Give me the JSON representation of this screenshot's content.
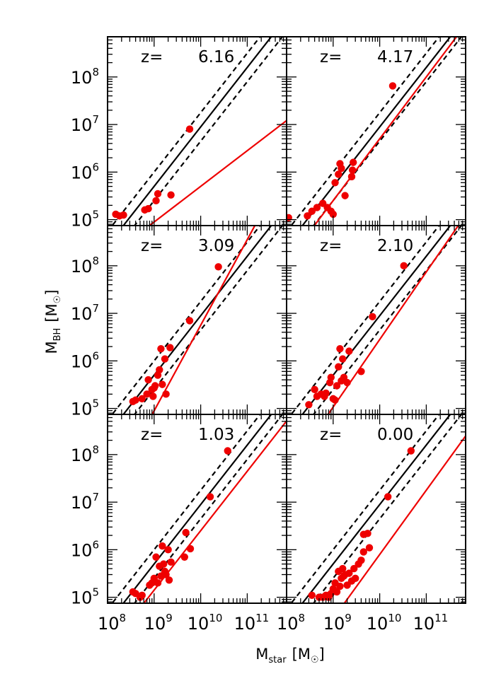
{
  "colors": {
    "data": "#ee0000",
    "reference": "#000000"
  },
  "chart_data": {
    "type": "scatter",
    "xlabel": {
      "main": "M",
      "sub": "star",
      "unit": "[M",
      "unit_close": "]"
    },
    "ylabel": {
      "main": "M",
      "sub": "BH",
      "unit": "[M",
      "unit_close": "]"
    },
    "xscale": "log",
    "yscale": "log",
    "xlim": [
      100000000,
      700000000000
    ],
    "ylim": [
      75000,
      700000000
    ],
    "xticks": [
      {
        "value": 100000000,
        "base": "10",
        "exp": "8"
      },
      {
        "value": 1000000000,
        "base": "10",
        "exp": "9"
      },
      {
        "value": 10000000000,
        "base": "10",
        "exp": "10"
      },
      {
        "value": 100000000000,
        "base": "10",
        "exp": "11"
      }
    ],
    "yticks": [
      {
        "value": 100000,
        "base": "10",
        "exp": "5"
      },
      {
        "value": 1000000,
        "base": "10",
        "exp": "6"
      },
      {
        "value": 10000000,
        "base": "10",
        "exp": "7"
      },
      {
        "value": 100000000,
        "base": "10",
        "exp": "8"
      }
    ],
    "reference_relation": {
      "central": {
        "logA": -5.55,
        "slope": 1.25
      },
      "scatter_dex": 0.3
    },
    "panels": [
      {
        "label": "z=",
        "z": "6.16",
        "fit": {
          "logA": -1.8,
          "slope": 0.75
        },
        "points": [
          [
            150000000.0,
            130000.0
          ],
          [
            180000000.0,
            120000.0
          ],
          [
            220000000.0,
            125000.0
          ],
          [
            630000000.0,
            160000.0
          ],
          [
            750000000.0,
            170000.0
          ],
          [
            1100000000.0,
            250000.0
          ],
          [
            1200000000.0,
            350000.0
          ],
          [
            2300000000.0,
            330000.0
          ],
          [
            5800000000.0,
            8000000.0
          ]
        ]
      },
      {
        "label": "z=",
        "z": "4.17",
        "fit": {
          "logA": -6.3,
          "slope": 1.3
        },
        "points": [
          [
            110000000.0,
            110000.0
          ],
          [
            280000000.0,
            120000.0
          ],
          [
            350000000.0,
            150000.0
          ],
          [
            450000000.0,
            180000.0
          ],
          [
            600000000.0,
            220000.0
          ],
          [
            750000000.0,
            180000.0
          ],
          [
            900000000.0,
            150000.0
          ],
          [
            1000000000.0,
            130000.0
          ],
          [
            1100000000.0,
            600000.0
          ],
          [
            1300000000.0,
            900000.0
          ],
          [
            1400000000.0,
            1500000.0
          ],
          [
            1500000000.0,
            1200000.0
          ],
          [
            1800000000.0,
            320000.0
          ],
          [
            2500000000.0,
            800000.0
          ],
          [
            2600000000.0,
            1100000.0
          ],
          [
            2700000000.0,
            1600000.0
          ],
          [
            19000000000.0,
            65000000.0
          ]
        ]
      },
      {
        "label": "z=",
        "z": "3.09",
        "fit": {
          "logA": -11.25,
          "slope": 1.8
        },
        "points": [
          [
            350000000.0,
            140000.0
          ],
          [
            400000000.0,
            150000.0
          ],
          [
            550000000.0,
            160000.0
          ],
          [
            700000000.0,
            200000.0
          ],
          [
            750000000.0,
            400000.0
          ],
          [
            900000000.0,
            250000.0
          ],
          [
            950000000.0,
            180000.0
          ],
          [
            1000000000.0,
            270000.0
          ],
          [
            1050000000.0,
            300000.0
          ],
          [
            1200000000.0,
            500000.0
          ],
          [
            1300000000.0,
            650000.0
          ],
          [
            1400000000.0,
            1800000.0
          ],
          [
            1500000000.0,
            320000.0
          ],
          [
            1700000000.0,
            1100000.0
          ],
          [
            1800000000.0,
            200000.0
          ],
          [
            2200000000.0,
            1900000.0
          ],
          [
            5800000000.0,
            7000000.0
          ],
          [
            24000000000.0,
            95000000.0
          ]
        ]
      },
      {
        "label": "z=",
        "z": "2.10",
        "fit": {
          "logA": -7.75,
          "slope": 1.42
        },
        "points": [
          [
            300000000.0,
            120000.0
          ],
          [
            400000000.0,
            250000.0
          ],
          [
            450000000.0,
            180000.0
          ],
          [
            550000000.0,
            200000.0
          ],
          [
            650000000.0,
            180000.0
          ],
          [
            700000000.0,
            210000.0
          ],
          [
            850000000.0,
            350000.0
          ],
          [
            900000000.0,
            450000.0
          ],
          [
            1000000000.0,
            160000.0
          ],
          [
            1100000000.0,
            150000.0
          ],
          [
            1200000000.0,
            300000.0
          ],
          [
            1300000000.0,
            750000.0
          ],
          [
            1400000000.0,
            1800000.0
          ],
          [
            1500000000.0,
            380000.0
          ],
          [
            1600000000.0,
            1100000.0
          ],
          [
            1700000000.0,
            450000.0
          ],
          [
            2000000000.0,
            350000.0
          ],
          [
            2200000000.0,
            1600000.0
          ],
          [
            4000000000.0,
            600000.0
          ],
          [
            7000000000.0,
            8500000.0
          ],
          [
            33000000000.0,
            100000000.0
          ]
        ]
      },
      {
        "label": "z=",
        "z": "1.03",
        "fit": {
          "logA": -6.1,
          "slope": 1.25
        },
        "points": [
          [
            350000000.0,
            130000.0
          ],
          [
            400000000.0,
            120000.0
          ],
          [
            500000000.0,
            100000.0
          ],
          [
            550000000.0,
            110000.0
          ],
          [
            800000000.0,
            180000.0
          ],
          [
            900000000.0,
            200000.0
          ],
          [
            1000000000.0,
            250000.0
          ],
          [
            1100000000.0,
            700000.0
          ],
          [
            1200000000.0,
            200000.0
          ],
          [
            1300000000.0,
            450000.0
          ],
          [
            1400000000.0,
            280000.0
          ],
          [
            1500000000.0,
            1200000.0
          ],
          [
            1600000000.0,
            500000.0
          ],
          [
            1700000000.0,
            350000.0
          ],
          [
            1800000000.0,
            300000.0
          ],
          [
            2000000000.0,
            1000000.0
          ],
          [
            2100000000.0,
            230000.0
          ],
          [
            2300000000.0,
            550000.0
          ],
          [
            4500000000.0,
            700000.0
          ],
          [
            4800000000.0,
            2300000.0
          ],
          [
            6000000000.0,
            1050000.0
          ],
          [
            16000000000.0,
            13000000.0
          ],
          [
            38000000000.0,
            120000000.0
          ]
        ]
      },
      {
        "label": "z=",
        "z": "0.00",
        "fit": {
          "logA": -7.6,
          "slope": 1.35
        },
        "points": [
          [
            350000000.0,
            110000.0
          ],
          [
            500000000.0,
            100000.0
          ],
          [
            600000000.0,
            100000.0
          ],
          [
            700000000.0,
            110000.0
          ],
          [
            800000000.0,
            100000.0
          ],
          [
            900000000.0,
            120000.0
          ],
          [
            1000000000.0,
            150000.0
          ],
          [
            1100000000.0,
            200000.0
          ],
          [
            1200000000.0,
            130000.0
          ],
          [
            1300000000.0,
            350000.0
          ],
          [
            1400000000.0,
            170000.0
          ],
          [
            1500000000.0,
            250000.0
          ],
          [
            1600000000.0,
            400000.0
          ],
          [
            1700000000.0,
            280000.0
          ],
          [
            1800000000.0,
            300000.0
          ],
          [
            2000000000.0,
            180000.0
          ],
          [
            2200000000.0,
            320000.0
          ],
          [
            2500000000.0,
            220000.0
          ],
          [
            2800000000.0,
            400000.0
          ],
          [
            3000000000.0,
            250000.0
          ],
          [
            3500000000.0,
            500000.0
          ],
          [
            4000000000.0,
            600000.0
          ],
          [
            4500000000.0,
            900000.0
          ],
          [
            4500000000.0,
            2100000.0
          ],
          [
            5500000000.0,
            2200000.0
          ],
          [
            6000000000.0,
            1100000.0
          ],
          [
            15000000000.0,
            13000000.0
          ],
          [
            47000000000.0,
            120000000.0
          ]
        ]
      }
    ]
  }
}
